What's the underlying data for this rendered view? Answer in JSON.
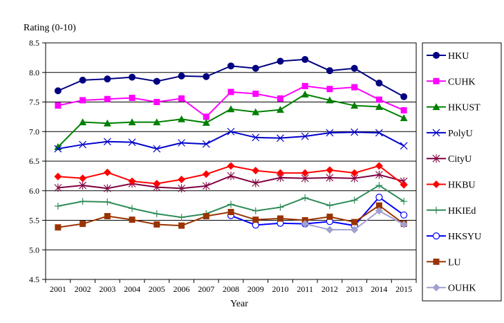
{
  "chart_data": {
    "type": "line",
    "title": "",
    "ylabel": "Rating  (0-10)",
    "xlabel": "Year",
    "ylim": [
      4.5,
      8.5
    ],
    "yticks": [
      4.5,
      5.0,
      5.5,
      6.0,
      6.5,
      7.0,
      7.5,
      8.0,
      8.5
    ],
    "ytick_labels": [
      "4.5",
      "5.0",
      "5.5",
      "6.0",
      "6.5",
      "7.0",
      "7.5",
      "8.0",
      "8.5"
    ],
    "x": [
      "2001",
      "2002",
      "2003",
      "2004",
      "2005",
      "2006",
      "2007",
      "2008",
      "2009",
      "2010",
      "2011",
      "2012",
      "2013",
      "2014",
      "2015"
    ],
    "grid": "horizontal",
    "legend_position": "right",
    "series": [
      {
        "name": "HKU",
        "color": "#000080",
        "marker": "circle-filled",
        "values": [
          7.69,
          7.87,
          7.89,
          7.92,
          7.85,
          7.94,
          7.93,
          8.11,
          8.07,
          8.19,
          8.22,
          8.03,
          8.07,
          7.82,
          7.59
        ]
      },
      {
        "name": "CUHK",
        "color": "#ff00ff",
        "marker": "square-filled",
        "values": [
          7.44,
          7.53,
          7.55,
          7.57,
          7.5,
          7.56,
          7.25,
          7.67,
          7.64,
          7.56,
          7.77,
          7.72,
          7.75,
          7.54,
          7.36
        ]
      },
      {
        "name": "HKUST",
        "color": "#008000",
        "marker": "triangle-filled",
        "values": [
          6.74,
          7.16,
          7.14,
          7.16,
          7.16,
          7.21,
          7.15,
          7.38,
          7.33,
          7.37,
          7.63,
          7.53,
          7.44,
          7.42,
          7.23
        ]
      },
      {
        "name": "PolyU",
        "color": "#0000cc",
        "marker": "x",
        "values": [
          6.71,
          6.78,
          6.83,
          6.82,
          6.71,
          6.81,
          6.79,
          7.0,
          6.9,
          6.89,
          6.92,
          6.98,
          6.99,
          6.98,
          6.76
        ]
      },
      {
        "name": "CityU",
        "color": "#800040",
        "marker": "star",
        "values": [
          6.05,
          6.09,
          6.04,
          6.12,
          6.06,
          6.04,
          6.08,
          6.25,
          6.13,
          6.22,
          6.21,
          6.22,
          6.21,
          6.27,
          6.16
        ]
      },
      {
        "name": "HKBU",
        "color": "#ff0000",
        "marker": "diamond-filled",
        "values": [
          6.24,
          6.21,
          6.31,
          6.16,
          6.12,
          6.19,
          6.28,
          6.42,
          6.34,
          6.3,
          6.3,
          6.35,
          6.3,
          6.42,
          6.1
        ]
      },
      {
        "name": "HKIEd",
        "color": "#2e8b57",
        "marker": "plus",
        "values": [
          5.74,
          5.82,
          5.81,
          5.7,
          5.61,
          5.55,
          5.61,
          5.77,
          5.66,
          5.72,
          5.88,
          5.75,
          5.84,
          6.09,
          5.82
        ]
      },
      {
        "name": "HKSYU",
        "color": "#0000ff",
        "marker": "circle-open",
        "values": [
          null,
          null,
          null,
          null,
          null,
          null,
          null,
          5.58,
          5.42,
          5.45,
          5.44,
          5.48,
          5.41,
          5.89,
          5.59
        ]
      },
      {
        "name": "LU",
        "color": "#993300",
        "marker": "square-filled",
        "values": [
          5.38,
          5.44,
          5.57,
          5.51,
          5.43,
          5.41,
          5.57,
          5.64,
          5.51,
          5.53,
          5.5,
          5.56,
          5.47,
          5.75,
          5.44
        ]
      },
      {
        "name": "OUHK",
        "color": "#a0a0d0",
        "marker": "diamond-filled",
        "values": [
          null,
          null,
          null,
          null,
          null,
          null,
          null,
          null,
          null,
          null,
          5.44,
          5.34,
          5.34,
          5.66,
          5.43
        ]
      }
    ]
  }
}
